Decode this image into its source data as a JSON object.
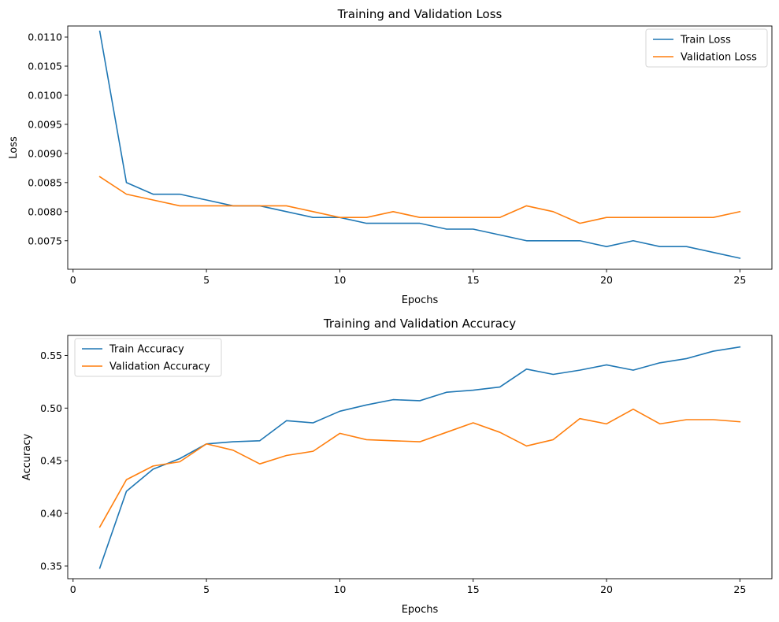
{
  "chart_data": [
    {
      "type": "line",
      "title": "Training and Validation Loss",
      "xlabel": "Epochs",
      "ylabel": "Loss",
      "xlim": [
        -0.2,
        26.2
      ],
      "ylim": [
        0.00701,
        0.01119
      ],
      "xticks": [
        0,
        5,
        10,
        15,
        20,
        25
      ],
      "yticks": [
        0.0075,
        0.008,
        0.0085,
        0.009,
        0.0095,
        0.01,
        0.0105,
        0.011
      ],
      "ytick_labels": [
        "0.0075",
        "0.0080",
        "0.0085",
        "0.0090",
        "0.0095",
        "0.0100",
        "0.0105",
        "0.0110"
      ],
      "legend_position": "top-right",
      "grid": false,
      "x": [
        1,
        2,
        3,
        4,
        5,
        6,
        7,
        8,
        9,
        10,
        11,
        12,
        13,
        14,
        15,
        16,
        17,
        18,
        19,
        20,
        21,
        22,
        23,
        24,
        25
      ],
      "series": [
        {
          "name": "Train Loss",
          "color": "#1f77b4",
          "values": [
            0.0111,
            0.0085,
            0.0083,
            0.0083,
            0.0082,
            0.0081,
            0.0081,
            0.008,
            0.0079,
            0.0079,
            0.0078,
            0.0078,
            0.0078,
            0.0077,
            0.0077,
            0.0076,
            0.0075,
            0.0075,
            0.0075,
            0.0074,
            0.0075,
            0.0074,
            0.0074,
            0.0073,
            0.0072
          ]
        },
        {
          "name": "Validation Loss",
          "color": "#ff7f0e",
          "values": [
            0.0086,
            0.0083,
            0.0082,
            0.0081,
            0.0081,
            0.0081,
            0.0081,
            0.0081,
            0.008,
            0.0079,
            0.0079,
            0.008,
            0.0079,
            0.0079,
            0.0079,
            0.0079,
            0.0081,
            0.008,
            0.0078,
            0.0079,
            0.0079,
            0.0079,
            0.0079,
            0.0079,
            0.008
          ]
        }
      ]
    },
    {
      "type": "line",
      "title": "Training and Validation Accuracy",
      "xlabel": "Epochs",
      "ylabel": "Accuracy",
      "xlim": [
        -0.2,
        26.2
      ],
      "ylim": [
        0.338,
        0.569
      ],
      "xticks": [
        0,
        5,
        10,
        15,
        20,
        25
      ],
      "yticks": [
        0.35,
        0.4,
        0.45,
        0.5,
        0.55
      ],
      "ytick_labels": [
        "0.35",
        "0.40",
        "0.45",
        "0.50",
        "0.55"
      ],
      "legend_position": "top-left",
      "grid": false,
      "x": [
        1,
        2,
        3,
        4,
        5,
        6,
        7,
        8,
        9,
        10,
        11,
        12,
        13,
        14,
        15,
        16,
        17,
        18,
        19,
        20,
        21,
        22,
        23,
        24,
        25
      ],
      "series": [
        {
          "name": "Train Accuracy",
          "color": "#1f77b4",
          "values": [
            0.348,
            0.421,
            0.442,
            0.452,
            0.466,
            0.468,
            0.469,
            0.488,
            0.486,
            0.497,
            0.503,
            0.508,
            0.507,
            0.515,
            0.517,
            0.52,
            0.537,
            0.532,
            0.536,
            0.541,
            0.536,
            0.543,
            0.547,
            0.554,
            0.558
          ]
        },
        {
          "name": "Validation Accuracy",
          "color": "#ff7f0e",
          "values": [
            0.387,
            0.432,
            0.445,
            0.449,
            0.466,
            0.46,
            0.447,
            0.455,
            0.459,
            0.476,
            0.47,
            0.469,
            0.468,
            0.477,
            0.486,
            0.477,
            0.464,
            0.47,
            0.49,
            0.485,
            0.499,
            0.485,
            0.489,
            0.489,
            0.487
          ]
        }
      ]
    }
  ]
}
